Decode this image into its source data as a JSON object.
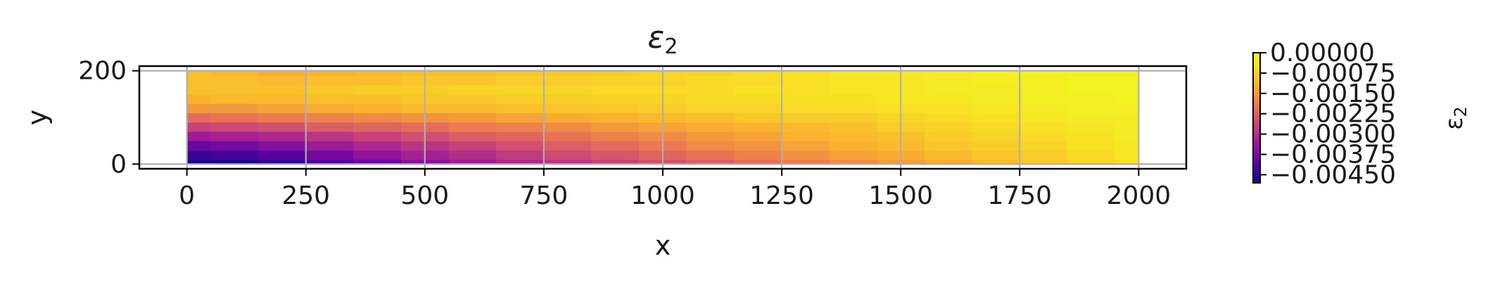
{
  "chart_data": {
    "type": "heatmap",
    "title": "ε",
    "title_subscript": "2",
    "xlabel": "x",
    "ylabel": "y",
    "xlim": [
      -100,
      2100
    ],
    "ylim": [
      -10,
      210
    ],
    "domain": {
      "x": [
        0,
        2000
      ],
      "y": [
        0,
        200
      ]
    },
    "x_ticks": [
      0,
      250,
      500,
      750,
      1000,
      1250,
      1500,
      1750,
      2000
    ],
    "x_tick_labels": [
      "0",
      "250",
      "500",
      "750",
      "1000",
      "1250",
      "1500",
      "1750",
      "2000"
    ],
    "y_ticks": [
      0,
      200
    ],
    "y_tick_labels": [
      "0",
      "200"
    ],
    "grid": true,
    "colormap": "plasma",
    "colorbar": {
      "label": "ε",
      "label_subscript": "2",
      "range": [
        -0.0048,
        0.0
      ],
      "ticks": [
        0.0,
        -0.00075,
        -0.0015,
        -0.00225,
        -0.003,
        -0.00375,
        -0.0045
      ],
      "tick_labels": [
        "0.00000",
        "−0.00075",
        "−0.00150",
        "−0.00225",
        "−0.00300",
        "−0.00375",
        "−0.00450"
      ]
    },
    "field": {
      "x": [
        0,
        100,
        200,
        300,
        400,
        500,
        600,
        700,
        800,
        900,
        1000,
        1100,
        1200,
        1300,
        1400,
        1500,
        1600,
        1700,
        1800,
        1900,
        2000
      ],
      "y": [
        0,
        20,
        40,
        60,
        80,
        100,
        120,
        140,
        160,
        180,
        200
      ],
      "values": [
        [
          -0.0047,
          -0.0047,
          -0.0045,
          -0.0042,
          -0.0039,
          -0.0036,
          -0.0033,
          -0.0031,
          -0.0029,
          -0.0027,
          -0.0025,
          -0.0023,
          -0.0021,
          -0.0019,
          -0.0017,
          -0.0015,
          -0.0013,
          -0.0011,
          -0.0009,
          -0.0007,
          -0.0005
        ],
        [
          -0.0044,
          -0.0043,
          -0.0041,
          -0.0038,
          -0.0035,
          -0.0032,
          -0.003,
          -0.0028,
          -0.0026,
          -0.0024,
          -0.0022,
          -0.002,
          -0.0018,
          -0.0016,
          -0.0014,
          -0.0013,
          -0.0011,
          -0.0009,
          -0.0008,
          -0.0006,
          -0.0004
        ],
        [
          -0.0039,
          -0.0038,
          -0.0036,
          -0.0033,
          -0.0031,
          -0.0029,
          -0.0027,
          -0.0025,
          -0.0023,
          -0.0021,
          -0.0019,
          -0.0017,
          -0.0016,
          -0.0014,
          -0.0012,
          -0.0011,
          -0.0009,
          -0.0008,
          -0.0007,
          -0.0005,
          -0.0004
        ],
        [
          -0.0033,
          -0.0032,
          -0.0031,
          -0.0029,
          -0.0027,
          -0.0025,
          -0.0023,
          -0.0022,
          -0.002,
          -0.0018,
          -0.0017,
          -0.0015,
          -0.0014,
          -0.0012,
          -0.0011,
          -0.001,
          -0.0008,
          -0.0007,
          -0.0006,
          -0.0005,
          -0.0003
        ],
        [
          -0.0027,
          -0.0026,
          -0.0025,
          -0.0023,
          -0.0022,
          -0.0021,
          -0.0019,
          -0.0018,
          -0.0017,
          -0.0015,
          -0.0014,
          -0.0013,
          -0.0012,
          -0.0011,
          -0.001,
          -0.0008,
          -0.0007,
          -0.0006,
          -0.0005,
          -0.0004,
          -0.0003
        ],
        [
          -0.0021,
          -0.002,
          -0.0019,
          -0.0018,
          -0.0017,
          -0.0016,
          -0.0015,
          -0.0014,
          -0.0013,
          -0.0012,
          -0.0011,
          -0.001,
          -0.0009,
          -0.0008,
          -0.0008,
          -0.0007,
          -0.0006,
          -0.0005,
          -0.0004,
          -0.0003,
          -0.0003
        ],
        [
          -0.0015,
          -0.0015,
          -0.0014,
          -0.0013,
          -0.0012,
          -0.0011,
          -0.0011,
          -0.001,
          -0.0009,
          -0.0009,
          -0.0008,
          -0.0007,
          -0.0007,
          -0.0006,
          -0.0006,
          -0.0005,
          -0.0005,
          -0.0004,
          -0.0003,
          -0.0002,
          -0.0002
        ],
        [
          -0.0012,
          -0.0011,
          -0.0011,
          -0.001,
          -0.001,
          -0.0009,
          -0.0009,
          -0.0008,
          -0.0008,
          -0.0007,
          -0.0007,
          -0.0006,
          -0.0006,
          -0.0005,
          -0.0005,
          -0.0004,
          -0.0004,
          -0.0003,
          -0.0002,
          -0.0002,
          -0.0001
        ],
        [
          -0.001,
          -0.001,
          -0.001,
          -0.0009,
          -0.0008,
          -0.0008,
          -0.0007,
          -0.0007,
          -0.0007,
          -0.0006,
          -0.0006,
          -0.0006,
          -0.0005,
          -0.0005,
          -0.0004,
          -0.0004,
          -0.0003,
          -0.0003,
          -0.0002,
          -0.0001,
          -0.0001
        ],
        [
          -0.001,
          -0.001,
          -0.0011,
          -0.001,
          -0.001,
          -0.0009,
          -0.0009,
          -0.0008,
          -0.0008,
          -0.0007,
          -0.0007,
          -0.0006,
          -0.0006,
          -0.0005,
          -0.0004,
          -0.0004,
          -0.0003,
          -0.0002,
          -0.0002,
          -0.0001,
          -0.0001
        ],
        [
          -0.001,
          -0.0011,
          -0.0013,
          -0.0012,
          -0.0011,
          -0.001,
          -0.001,
          -0.0009,
          -0.0009,
          -0.0008,
          -0.0007,
          -0.0007,
          -0.0006,
          -0.0005,
          -0.0004,
          -0.0004,
          -0.0003,
          -0.0002,
          -0.0001,
          -0.0001,
          -0.0001
        ]
      ]
    }
  }
}
